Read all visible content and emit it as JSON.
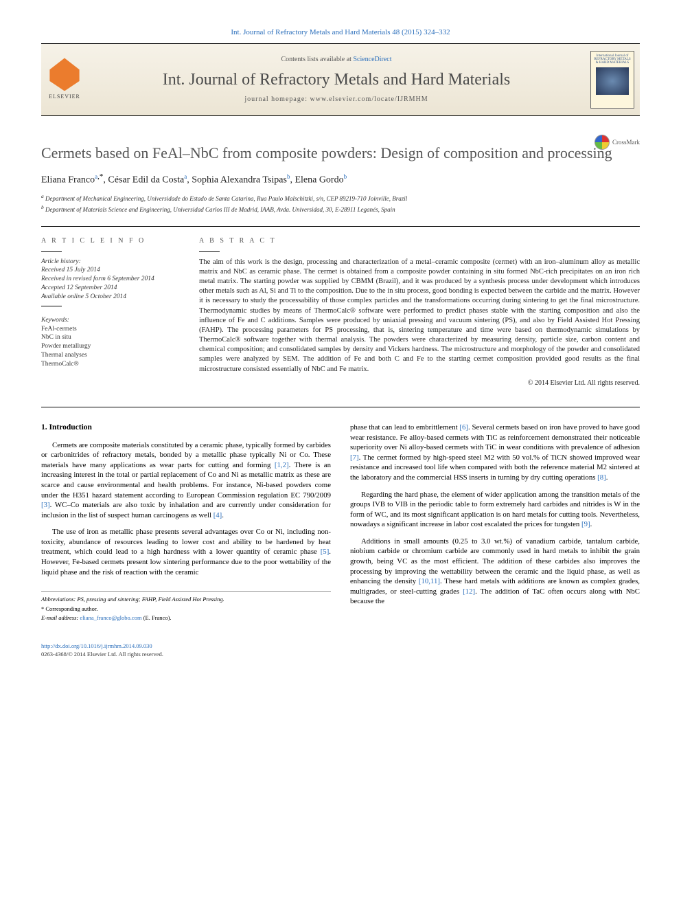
{
  "top_link": "Int. Journal of Refractory Metals and Hard Materials 48 (2015) 324–332",
  "header": {
    "contents_prefix": "Contents lists available at ",
    "contents_link": "ScienceDirect",
    "journal_title": "Int. Journal of Refractory Metals and Hard Materials",
    "homepage_prefix": "journal homepage: ",
    "homepage_url": "www.elsevier.com/locate/IJRMHM",
    "publisher_word": "ELSEVIER",
    "cover_caption": "International Journal of REFRACTORY METALS & HARD MATERIALS"
  },
  "crossmark_label": "CrossMark",
  "title": "Cermets based on FeAl–NbC from composite powders: Design of composition and processing",
  "authors": [
    {
      "name": "Eliana Franco",
      "aff": "a",
      "corr": true
    },
    {
      "name": "César Edil da Costa",
      "aff": "a",
      "corr": false
    },
    {
      "name": "Sophia Alexandra Tsipas",
      "aff": "b",
      "corr": false
    },
    {
      "name": "Elena Gordo",
      "aff": "b",
      "corr": false
    }
  ],
  "affiliations": {
    "a": "Department of Mechanical Engineering, Universidade do Estado de Santa Catarina, Rua Paulo Malschitzki, s/n, CEP 89219-710 Joinville, Brazil",
    "b": "Department of Materials Science and Engineering, Universidad Carlos III de Madrid, IAAB, Avda. Universidad, 30, E-28911 Leganés, Spain"
  },
  "info_labels": {
    "left": "A R T I C L E   I N F O",
    "right": "A B S T R A C T"
  },
  "history": {
    "label": "Article history:",
    "received": "Received 15 July 2014",
    "revised": "Received in revised form 6 September 2014",
    "accepted": "Accepted 12 September 2014",
    "online": "Available online 5 October 2014"
  },
  "keywords": {
    "label": "Keywords:",
    "items": [
      "FeAl-cermets",
      "NbC in situ",
      "Powder metallurgy",
      "Thermal analyses",
      "ThermoCalc®"
    ]
  },
  "abstract": "The aim of this work is the design, processing and characterization of a metal–ceramic composite (cermet) with an iron–aluminum alloy as metallic matrix and NbC as ceramic phase. The cermet is obtained from a composite powder containing in situ formed NbC-rich precipitates on an iron rich metal matrix. The starting powder was supplied by CBMM (Brazil), and it was produced by a synthesis process under development which introduces other metals such as Al, Si and Ti to the composition. Due to the in situ process, good bonding is expected between the carbide and the matrix. However it is necessary to study the processability of those complex particles and the transformations occurring during sintering to get the final microstructure. Thermodynamic studies by means of ThermoCalc® software were performed to predict phases stable with the starting composition and also the influence of Fe and C additions. Samples were produced by uniaxial pressing and vacuum sintering (PS), and also by Field Assisted Hot Pressing (FAHP). The processing parameters for PS processing, that is, sintering temperature and time were based on thermodynamic simulations by ThermoCalc® software together with thermal analysis. The powders were characterized by measuring density, particle size, carbon content and chemical composition; and consolidated samples by density and Vickers hardness. The microstructure and morphology of the powder and consolidated samples were analyzed by SEM. The addition of Fe and both C and Fe to the starting cermet composition provided good results as the final microstructure consisted essentially of NbC and Fe matrix.",
  "copyright": "© 2014 Elsevier Ltd. All rights reserved.",
  "body": {
    "heading1": "1. Introduction",
    "col1": {
      "p1": "Cermets are composite materials constituted by a ceramic phase, typically formed by carbides or carbonitrides of refractory metals, bonded by a metallic phase typically Ni or Co. These materials have many applications as wear parts for cutting and forming [1,2]. There is an increasing interest in the total or partial replacement of Co and Ni as metallic matrix as these are scarce and cause environmental and health problems. For instance, Ni-based powders come under the H351 hazard statement according to European Commission regulation EC 790/2009 [3]. WC–Co materials are also toxic by inhalation and are currently under consideration for inclusion in the list of suspect human carcinogens as well [4].",
      "p2": "The use of iron as metallic phase presents several advantages over Co or Ni, including non-toxicity, abundance of resources leading to lower cost and ability to be hardened by heat treatment, which could lead to a high hardness with a lower quantity of ceramic phase [5]. However, Fe-based cermets present low sintering performance due to the poor wettability of the liquid phase and the risk of reaction with the ceramic"
    },
    "col2": {
      "p1": "phase that can lead to embrittlement [6]. Several cermets based on iron have proved to have good wear resistance. Fe alloy-based cermets with TiC as reinforcement demonstrated their noticeable superiority over Ni alloy-based cermets with TiC in wear conditions with prevalence of adhesion [7]. The cermet formed by high-speed steel M2 with 50 vol.% of TiCN showed improved wear resistance and increased tool life when compared with both the reference material M2 sintered at the laboratory and the commercial HSS inserts in turning by dry cutting operations [8].",
      "p2": "Regarding the hard phase, the element of wider application among the transition metals of the groups IVB to VIB in the periodic table to form extremely hard carbides and nitrides is W in the form of WC, and its most significant application is on hard metals for cutting tools. Nevertheless, nowadays a significant increase in labor cost escalated the prices for tungsten [9].",
      "p3": "Additions in small amounts (0.25 to 3.0 wt.%) of vanadium carbide, tantalum carbide, niobium carbide or chromium carbide are commonly used in hard metals to inhibit the grain growth, being VC as the most efficient. The addition of these carbides also improves the processing by improving the wettability between the ceramic and the liquid phase, as well as enhancing the density [10,11]. These hard metals with additions are known as complex grades, multigrades, or steel-cutting grades [12]. The addition of TaC often occurs along with NbC because the"
    }
  },
  "refs": {
    "r12": "[1,2]",
    "r3": "[3]",
    "r4": "[4]",
    "r5": "[5]",
    "r6": "[6]",
    "r7": "[7]",
    "r8": "[8]",
    "r9": "[9]",
    "r1011": "[10,11]",
    "r12b": "[12]"
  },
  "footnotes": {
    "abbrev": "Abbreviations: PS, pressing and sintering; FAHP, Field Assisted Hot Pressing.",
    "corr_label": "Corresponding author.",
    "email_label": "E-mail address:",
    "email": "eliana_franco@globo.com",
    "email_name": "(E. Franco)."
  },
  "bottom": {
    "doi": "http://dx.doi.org/10.1016/j.ijrmhm.2014.09.030",
    "issn_line": "0263-4368/© 2014 Elsevier Ltd. All rights reserved."
  },
  "colors": {
    "link": "#2a6ebb",
    "elsevier_orange": "#eb7c2d",
    "header_bg_top": "#f6f2e8",
    "header_bg_bot": "#ece5d4",
    "title_gray": "#555555",
    "rule": "#000000"
  }
}
